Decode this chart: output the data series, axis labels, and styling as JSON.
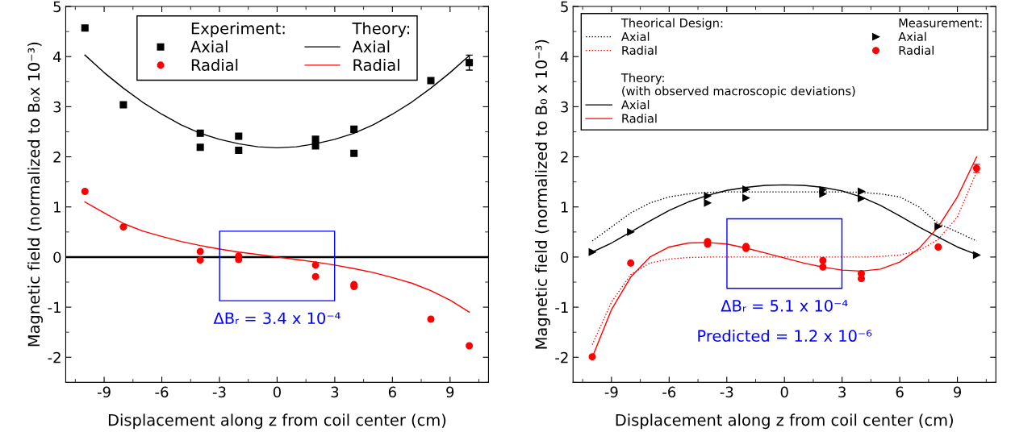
{
  "chart_data": [
    {
      "type": "scatter",
      "xlabel": "Displacement along z from coil center (cm)",
      "ylabel": "Magnetic field (normalized to B₀x 10⁻³)",
      "xlim": [
        -11,
        11
      ],
      "ylim": [
        -2.5,
        5
      ],
      "xticks": [
        -9,
        -6,
        -3,
        0,
        3,
        6,
        9
      ],
      "yticks": [
        -2,
        -1,
        0,
        1,
        2,
        3,
        4,
        5
      ],
      "legend": "top",
      "legend_title": [
        "Experiment:",
        "Theory:"
      ],
      "ref_lines": [
        {
          "axis": "y",
          "value": 0,
          "color": "#000000"
        }
      ],
      "annotations": [
        "ΔBᵣ = 3.4 x 10⁻⁴"
      ],
      "series": [
        {
          "name": "Axial",
          "marker": "square",
          "color": "#000000",
          "x": [
            -10,
            -8,
            -4,
            -4,
            -2,
            -2,
            2,
            2,
            4,
            4,
            8,
            10
          ],
          "values": [
            4.57,
            3.04,
            2.47,
            2.19,
            2.41,
            2.13,
            2.35,
            2.22,
            2.55,
            2.07,
            3.52,
            3.88
          ],
          "errors": [
            null,
            null,
            null,
            null,
            null,
            null,
            null,
            null,
            null,
            null,
            null,
            0.15
          ]
        },
        {
          "name": "Radial",
          "marker": "circle",
          "color": "#ff0000",
          "x": [
            -10,
            -8,
            -4,
            -4,
            -2,
            -2,
            2,
            2,
            4,
            4,
            8,
            10
          ],
          "values": [
            1.31,
            0.6,
            0.11,
            -0.06,
            0.02,
            -0.05,
            -0.16,
            -0.39,
            -0.55,
            -0.59,
            -1.24,
            -1.77
          ]
        },
        {
          "name": "Axial",
          "type": "line",
          "line_style": "solid",
          "color": "#000000",
          "x": [
            -10,
            -9,
            -8,
            -7,
            -6,
            -5,
            -4,
            -3,
            -2,
            -1,
            0,
            1,
            2,
            3,
            4,
            5,
            6,
            7,
            8,
            9,
            10
          ],
          "values": [
            4.03,
            3.68,
            3.37,
            3.09,
            2.85,
            2.64,
            2.47,
            2.35,
            2.26,
            2.2,
            2.18,
            2.2,
            2.26,
            2.35,
            2.47,
            2.64,
            2.85,
            3.09,
            3.37,
            3.68,
            4.02
          ]
        },
        {
          "name": "Radial",
          "type": "line",
          "line_style": "solid",
          "color": "#ff0000",
          "x": [
            -10,
            -9,
            -8,
            -7,
            -6,
            -5,
            -4,
            -3,
            -2,
            -1,
            0,
            1,
            2,
            3,
            4,
            5,
            6,
            7,
            8,
            9,
            10
          ],
          "values": [
            1.1,
            0.88,
            0.67,
            0.52,
            0.41,
            0.31,
            0.23,
            0.16,
            0.1,
            0.05,
            0.0,
            -0.05,
            -0.1,
            -0.16,
            -0.23,
            -0.31,
            -0.41,
            -0.52,
            -0.67,
            -0.86,
            -1.1
          ]
        }
      ]
    },
    {
      "type": "scatter",
      "xlabel": "Displacement along z from coil center (cm)",
      "ylabel": "Magnetic field (normalized to B₀ x 10⁻³)",
      "xlim": [
        -11,
        11
      ],
      "ylim": [
        -2.5,
        5
      ],
      "xticks": [
        -9,
        -6,
        -3,
        0,
        3,
        6,
        9
      ],
      "yticks": [
        -2,
        -1,
        0,
        1,
        2,
        3,
        4,
        5
      ],
      "legend": "top",
      "legend_title": [
        "Theorical Design:",
        "Measurement:",
        "Theory:\n(with observed macroscopic deviations)"
      ],
      "annotations": [
        "ΔBᵣ = 5.1 x 10⁻⁴",
        "Predicted = 1.2 x 10⁻⁶"
      ],
      "series": [
        {
          "name": "Axial",
          "type": "line",
          "line_style": "dotted",
          "color": "#000000",
          "x": [
            -10,
            -9,
            -8,
            -7,
            -6,
            -5,
            -4,
            -3,
            -2,
            -1,
            0,
            1,
            2,
            3,
            4,
            5,
            6,
            7,
            8,
            9,
            10
          ],
          "values": [
            0.32,
            0.6,
            0.88,
            1.08,
            1.2,
            1.26,
            1.29,
            1.3,
            1.3,
            1.3,
            1.3,
            1.3,
            1.3,
            1.3,
            1.29,
            1.26,
            1.2,
            1.0,
            0.67,
            0.5,
            0.32
          ]
        },
        {
          "name": "Radial",
          "type": "line",
          "line_style": "dotted",
          "color": "#ff0000",
          "x": [
            -10,
            -9,
            -8,
            -7,
            -6,
            -5,
            -4,
            -3,
            -2,
            -1,
            0,
            1,
            2,
            3,
            4,
            5,
            6,
            7,
            8,
            9,
            10
          ],
          "values": [
            -1.75,
            -0.9,
            -0.35,
            -0.12,
            -0.04,
            -0.01,
            0,
            0,
            0,
            0,
            0,
            0,
            0,
            0,
            0,
            0.01,
            0.04,
            0.13,
            0.35,
            0.8,
            1.7
          ]
        },
        {
          "name": "Axial",
          "marker": "triangle",
          "color": "#000000",
          "x": [
            -10,
            -8,
            -4,
            -4,
            -2,
            -2,
            2,
            2,
            4,
            4,
            8,
            10
          ],
          "values": [
            0.1,
            0.5,
            1.22,
            1.08,
            1.35,
            1.18,
            1.34,
            1.26,
            1.31,
            1.17,
            0.61,
            0.04
          ]
        },
        {
          "name": "Radial",
          "marker": "circle",
          "color": "#ff0000",
          "x": [
            -10,
            -8,
            -4,
            -4,
            -2,
            -2,
            2,
            2,
            4,
            4,
            8,
            10
          ],
          "values": [
            -1.99,
            -0.12,
            0.31,
            0.26,
            0.21,
            0.17,
            -0.07,
            -0.2,
            -0.33,
            -0.43,
            0.2,
            1.77
          ],
          "errors": [
            null,
            null,
            null,
            null,
            null,
            null,
            null,
            null,
            null,
            null,
            null,
            0.08
          ]
        },
        {
          "name": "Axial",
          "type": "line",
          "line_style": "solid",
          "color": "#000000",
          "x": [
            -10,
            -9,
            -8,
            -7,
            -6,
            -5,
            -4,
            -3,
            -2,
            -1,
            0,
            1,
            2,
            3,
            4,
            5,
            6,
            7,
            8,
            9,
            10
          ],
          "values": [
            0.1,
            0.28,
            0.5,
            0.72,
            0.93,
            1.1,
            1.23,
            1.33,
            1.39,
            1.43,
            1.44,
            1.43,
            1.39,
            1.32,
            1.2,
            1.03,
            0.82,
            0.6,
            0.4,
            0.2,
            0.05
          ]
        },
        {
          "name": "Radial",
          "type": "line",
          "line_style": "solid",
          "color": "#ff0000",
          "x": [
            -10,
            -9,
            -8,
            -7,
            -6,
            -5,
            -4,
            -3,
            -2,
            -1,
            0,
            1,
            2,
            3,
            4,
            5,
            6,
            7,
            8,
            9,
            10
          ],
          "values": [
            -2.0,
            -1.05,
            -0.4,
            0.0,
            0.2,
            0.28,
            0.29,
            0.26,
            0.18,
            0.08,
            -0.02,
            -0.12,
            -0.2,
            -0.26,
            -0.28,
            -0.24,
            -0.1,
            0.17,
            0.6,
            1.2,
            2.0
          ]
        }
      ]
    }
  ]
}
